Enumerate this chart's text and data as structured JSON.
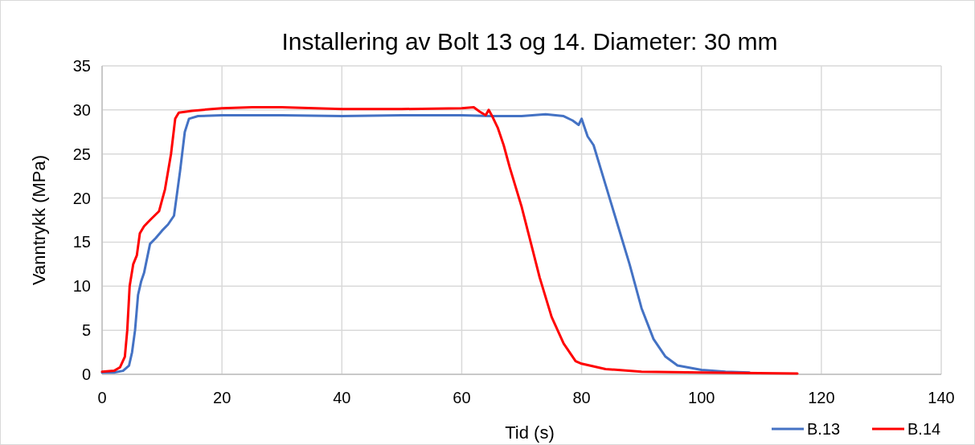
{
  "chart_data": {
    "type": "line",
    "title": "Installering av Bolt 13 og 14. Diameter: 30 mm",
    "xlabel": "Tid (s)",
    "ylabel": "Vanntrykk (MPa)",
    "xlim": [
      0,
      140
    ],
    "xticks": [
      0,
      20,
      40,
      60,
      80,
      100,
      120,
      140
    ],
    "ylim": [
      0,
      35
    ],
    "yticks": [
      0,
      5,
      10,
      15,
      20,
      25,
      30,
      35
    ],
    "grid": true,
    "legend": "bottom right",
    "line_style": "solid",
    "series": [
      {
        "name": "B.13",
        "color": "#4472c4",
        "x": [
          0,
          2,
          3.5,
          4.5,
          5,
          5.5,
          6,
          6.5,
          7,
          8,
          9,
          10,
          11,
          12,
          13,
          13.8,
          14.5,
          16,
          20,
          30,
          40,
          50,
          60,
          65,
          70,
          74,
          77,
          78.5,
          79.5,
          80,
          81,
          82,
          84,
          86,
          88,
          90,
          92,
          94,
          96,
          100,
          104,
          108
        ],
        "values": [
          0.2,
          0.2,
          0.4,
          1,
          2.5,
          5,
          9,
          10.5,
          11.5,
          14.8,
          15.5,
          16.3,
          17,
          18,
          23,
          27.5,
          29,
          29.3,
          29.4,
          29.4,
          29.3,
          29.4,
          29.4,
          29.3,
          29.3,
          29.5,
          29.3,
          28.8,
          28.3,
          29,
          27,
          26,
          21.5,
          17,
          12.5,
          7.5,
          4,
          2,
          1,
          0.5,
          0.3,
          0.2
        ]
      },
      {
        "name": "B.14",
        "color": "#ff0000",
        "x": [
          0,
          2,
          3,
          3.8,
          4.2,
          4.6,
          5.2,
          5.8,
          6.3,
          7,
          8,
          9.5,
          10.5,
          11.5,
          12.2,
          12.8,
          15,
          20,
          25,
          30,
          40,
          50,
          60,
          62,
          63,
          64,
          64.5,
          65,
          66,
          67,
          68,
          70,
          71.5,
          73,
          75,
          77,
          79,
          80,
          84,
          90,
          100,
          116
        ],
        "values": [
          0.3,
          0.4,
          0.8,
          2,
          5,
          10,
          12.5,
          13.5,
          16,
          16.8,
          17.5,
          18.5,
          21,
          25,
          29,
          29.7,
          29.9,
          30.2,
          30.3,
          30.3,
          30.1,
          30.1,
          30.2,
          30.3,
          29.8,
          29.4,
          30,
          29.4,
          28,
          26,
          23.5,
          19,
          15,
          11,
          6.5,
          3.5,
          1.5,
          1.2,
          0.6,
          0.3,
          0.2,
          0.1
        ]
      }
    ]
  }
}
